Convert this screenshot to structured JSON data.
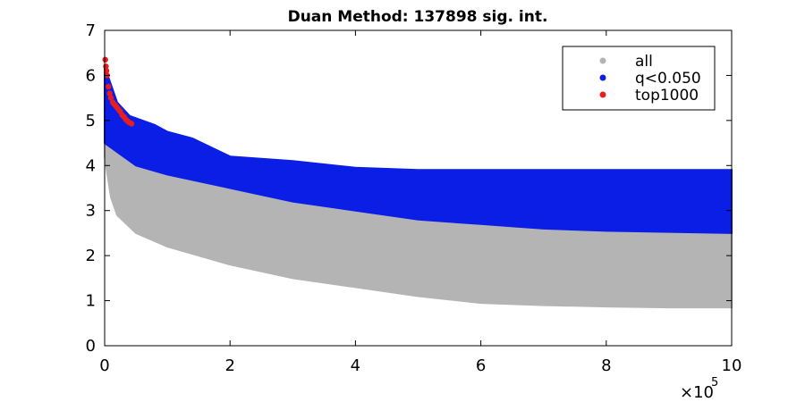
{
  "chart_data": {
    "type": "scatter",
    "title": "Duan Method: 137898 sig. int.",
    "xlabel": "",
    "ylabel": "",
    "xlim": [
      0,
      1000000
    ],
    "ylim": [
      0,
      7
    ],
    "x_multiplier_label": "×10",
    "x_multiplier_exponent": "5",
    "xticks": [
      0,
      200000,
      400000,
      600000,
      800000,
      1000000
    ],
    "xtick_labels": [
      "0",
      "2",
      "4",
      "6",
      "8",
      "10"
    ],
    "yticks": [
      0,
      1,
      2,
      3,
      4,
      5,
      6,
      7
    ],
    "ytick_labels": [
      "0",
      "1",
      "2",
      "3",
      "4",
      "5",
      "6",
      "7"
    ],
    "grid": false,
    "legend_position": "top-right",
    "series": [
      {
        "name": "all",
        "color": "#b4b4b4",
        "lower_envelope": [
          [
            0,
            4.2
          ],
          [
            10000,
            3.3
          ],
          [
            20000,
            2.9
          ],
          [
            50000,
            2.5
          ],
          [
            100000,
            2.2
          ],
          [
            200000,
            1.8
          ],
          [
            300000,
            1.5
          ],
          [
            400000,
            1.3
          ],
          [
            500000,
            1.1
          ],
          [
            600000,
            0.95
          ],
          [
            700000,
            0.9
          ],
          [
            800000,
            0.87
          ],
          [
            900000,
            0.85
          ],
          [
            1000000,
            0.85
          ]
        ],
        "upper_envelope": [
          [
            0,
            5.8
          ],
          [
            20000,
            4.3
          ],
          [
            50000,
            4.0
          ],
          [
            100000,
            3.8
          ],
          [
            200000,
            3.5
          ],
          [
            300000,
            3.2
          ],
          [
            400000,
            3.0
          ],
          [
            500000,
            2.8
          ],
          [
            600000,
            2.7
          ],
          [
            700000,
            2.6
          ],
          [
            800000,
            2.55
          ],
          [
            1000000,
            2.5
          ]
        ]
      },
      {
        "name": "q<0.050",
        "color": "#0a1ee6",
        "lower_envelope": [
          [
            0,
            4.5
          ],
          [
            20000,
            4.3
          ],
          [
            50000,
            4.0
          ],
          [
            100000,
            3.8
          ],
          [
            200000,
            3.5
          ],
          [
            300000,
            3.2
          ],
          [
            400000,
            3.0
          ],
          [
            500000,
            2.8
          ],
          [
            600000,
            2.7
          ],
          [
            700000,
            2.6
          ],
          [
            800000,
            2.55
          ],
          [
            1000000,
            2.5
          ]
        ],
        "upper_envelope": [
          [
            0,
            6.2
          ],
          [
            20000,
            5.4
          ],
          [
            40000,
            5.1
          ],
          [
            80000,
            4.9
          ],
          [
            100000,
            4.75
          ],
          [
            140000,
            4.6
          ],
          [
            200000,
            4.2
          ],
          [
            300000,
            4.1
          ],
          [
            400000,
            3.95
          ],
          [
            500000,
            3.9
          ],
          [
            600000,
            3.9
          ],
          [
            800000,
            3.9
          ],
          [
            1000000,
            3.9
          ]
        ]
      },
      {
        "name": "top1000",
        "color": "#e61e1e",
        "points": [
          [
            1000,
            6.35
          ],
          [
            2000,
            6.2
          ],
          [
            3000,
            6.1
          ],
          [
            4000,
            6.0
          ],
          [
            6000,
            5.75
          ],
          [
            8000,
            5.6
          ],
          [
            10000,
            5.5
          ],
          [
            13000,
            5.4
          ],
          [
            16000,
            5.35
          ],
          [
            19000,
            5.3
          ],
          [
            22000,
            5.25
          ],
          [
            25000,
            5.2
          ],
          [
            28000,
            5.12
          ],
          [
            31000,
            5.08
          ],
          [
            34000,
            5.02
          ],
          [
            37000,
            4.98
          ],
          [
            40000,
            4.95
          ],
          [
            43000,
            4.93
          ]
        ]
      }
    ]
  }
}
